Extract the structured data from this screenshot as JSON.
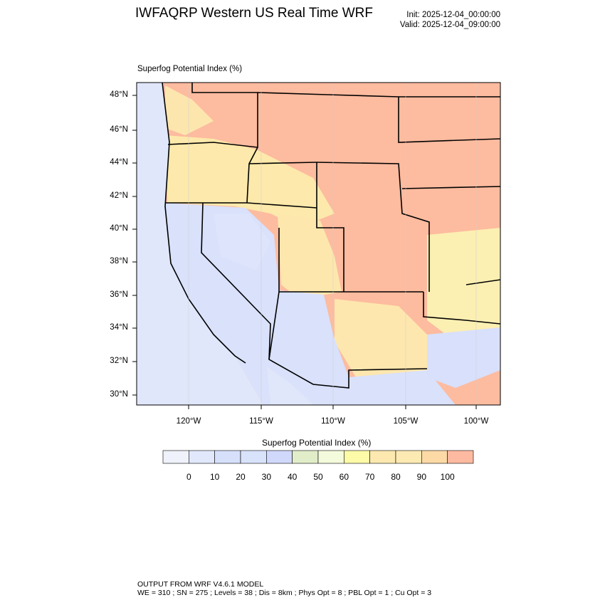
{
  "header": {
    "title": "IWFAQRP Western US Real Time WRF",
    "init": "Init: 2025-12-04_00:00:00",
    "valid": "Valid: 2025-12-04_09:00:00"
  },
  "plot": {
    "subtitle": "Superfog Potential Index   (%)",
    "lat_labels": [
      "48°N",
      "46°N",
      "44°N",
      "42°N",
      "40°N",
      "38°N",
      "36°N",
      "34°N",
      "32°N",
      "30°N"
    ],
    "lon_labels": [
      "120°W",
      "115°W",
      "110°W",
      "105°W",
      "100°W"
    ]
  },
  "colorbar": {
    "title": "Superfog Potential Index  (%)",
    "labels": [
      "0",
      "10",
      "20",
      "30",
      "40",
      "50",
      "60",
      "70",
      "80",
      "90",
      "100"
    ],
    "colors": [
      "#eff2fa",
      "#e2e8fc",
      "#d6e0fb",
      "#d8e2fb",
      "#d0d8fb",
      "#e0edc8",
      "#f4fadc",
      "#fdfaa8",
      "#fde9b0",
      "#fdeab2",
      "#fdd9a6",
      "#fdbaa0"
    ]
  },
  "footer": {
    "line1": "OUTPUT FROM WRF V4.6.1 MODEL",
    "line2": "WE = 310 ; SN = 275 ; Levels = 38 ; Dis = 8km ; Phys Opt = 8 ; PBL Opt = 1 ; Cu Opt = 3"
  }
}
